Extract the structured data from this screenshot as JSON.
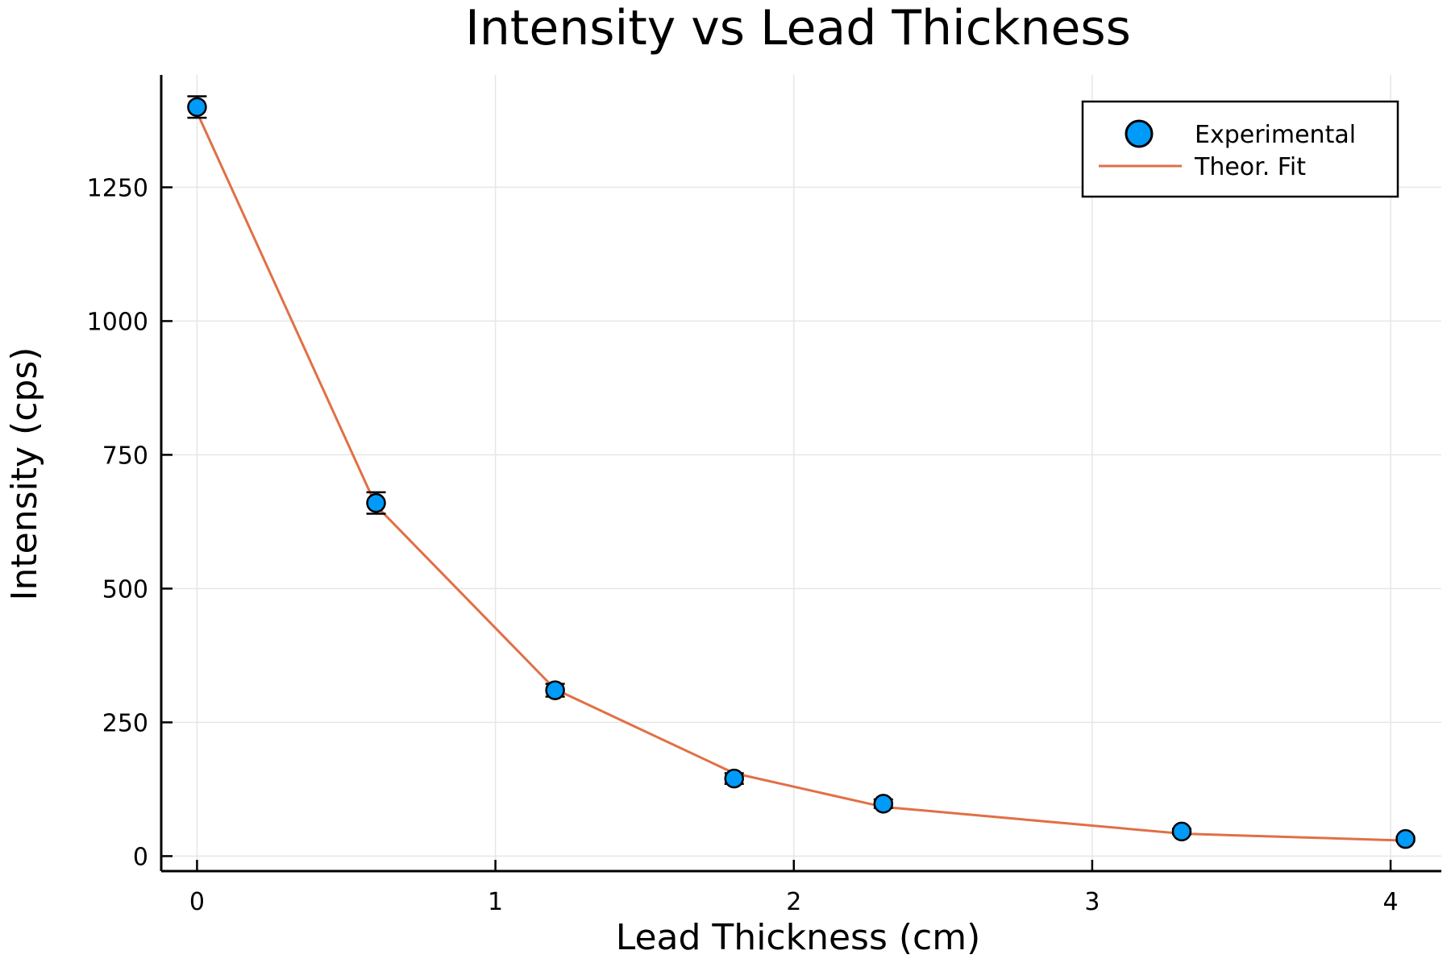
{
  "chart_data": {
    "type": "scatter",
    "title": "Intensity vs Lead Thickness",
    "xlabel": "Lead Thickness (cm)",
    "ylabel": "Intensity (cps)",
    "xlim": [
      -0.12,
      4.17
    ],
    "ylim": [
      -28,
      1460
    ],
    "xticks": [
      0,
      1,
      2,
      3,
      4
    ],
    "xtick_labels": [
      "0",
      "1",
      "2",
      "3",
      "4"
    ],
    "yticks": [
      0,
      250,
      500,
      750,
      1000,
      1250
    ],
    "ytick_labels": [
      "0",
      "250",
      "500",
      "750",
      "1000",
      "1250"
    ],
    "grid": true,
    "legend_position": "top-right",
    "series": [
      {
        "name": "Experimental",
        "kind": "scatter",
        "color": "#009af9",
        "x": [
          0.0,
          0.6,
          1.2,
          1.8,
          2.3,
          3.3,
          4.05
        ],
        "y": [
          1400,
          660,
          310,
          145,
          98,
          46,
          32
        ],
        "yerr": [
          20,
          20,
          12,
          10,
          8,
          5,
          4
        ]
      },
      {
        "name": "Theor. Fit",
        "kind": "line",
        "color": "#e26f46",
        "x": [
          0.0,
          0.6,
          1.2,
          1.8,
          2.3,
          3.3,
          4.05
        ],
        "y": [
          1390,
          655,
          312,
          155,
          92,
          42,
          29
        ]
      }
    ]
  }
}
